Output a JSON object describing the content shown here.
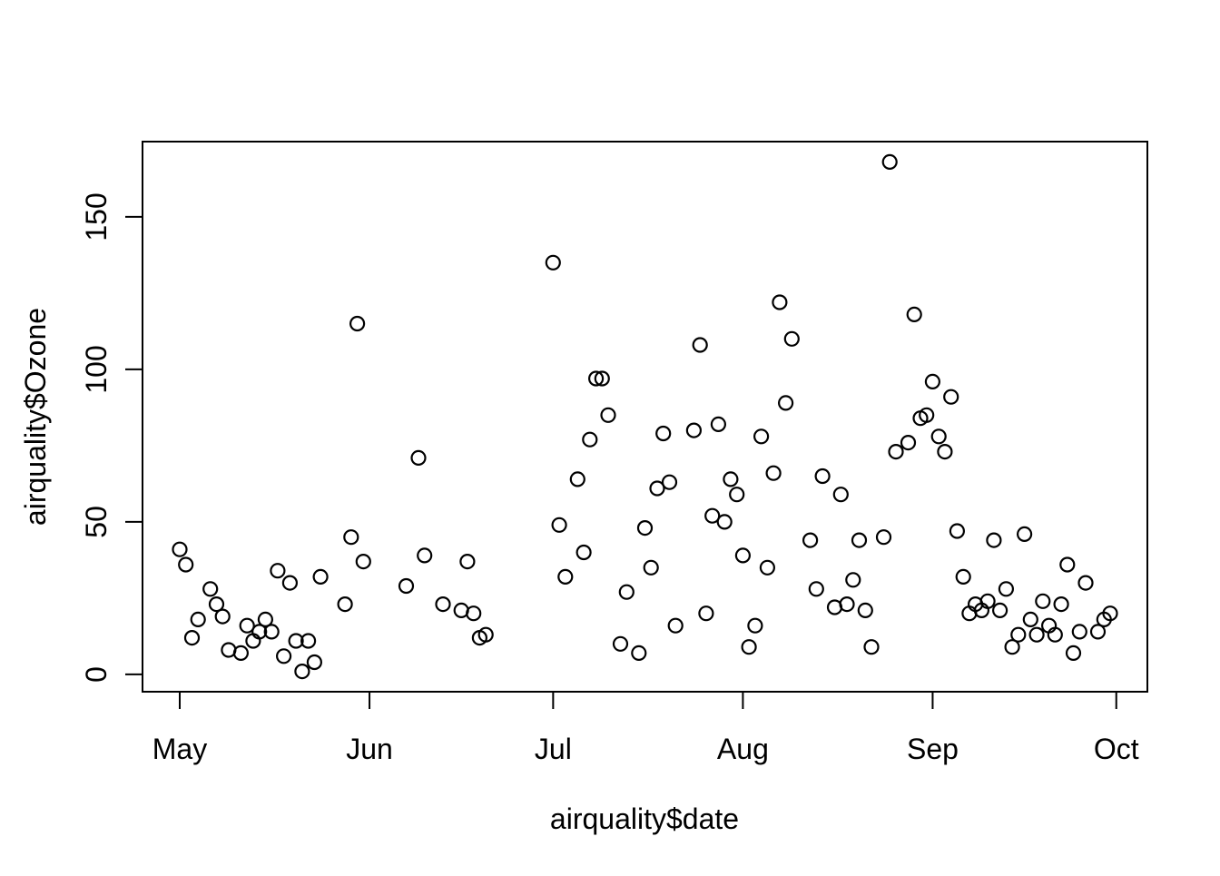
{
  "figure": {
    "background": "#ffffff",
    "foreground": "#000000"
  },
  "chart_data": {
    "type": "scatter",
    "title": "",
    "xlabel": "airquality$date",
    "ylabel": "airquality$Ozone",
    "x_unit": "day-of-year-1973",
    "xlim": [
      114.92,
      279.08
    ],
    "ylim": [
      -5.68,
      174.68
    ],
    "grid": false,
    "legend": null,
    "marker": {
      "shape": "open-circle",
      "radius": 7.5,
      "stroke": "#000000",
      "stroke_width": 2.2,
      "fill": "none"
    },
    "x_ticks": [
      {
        "label": "May",
        "value": 121
      },
      {
        "label": "Jun",
        "value": 152
      },
      {
        "label": "Jul",
        "value": 182
      },
      {
        "label": "Aug",
        "value": 213
      },
      {
        "label": "Sep",
        "value": 244
      },
      {
        "label": "Oct",
        "value": 274
      }
    ],
    "y_ticks": [
      {
        "label": "0",
        "value": 0
      },
      {
        "label": "50",
        "value": 50
      },
      {
        "label": "100",
        "value": 100
      },
      {
        "label": "150",
        "value": 150
      }
    ],
    "points": [
      [
        121,
        41
      ],
      [
        122,
        36
      ],
      [
        123,
        12
      ],
      [
        124,
        18
      ],
      [
        126,
        28
      ],
      [
        127,
        23
      ],
      [
        128,
        19
      ],
      [
        129,
        8
      ],
      [
        131,
        7
      ],
      [
        132,
        16
      ],
      [
        133,
        11
      ],
      [
        134,
        14
      ],
      [
        135,
        18
      ],
      [
        136,
        14
      ],
      [
        137,
        34
      ],
      [
        138,
        6
      ],
      [
        139,
        30
      ],
      [
        140,
        11
      ],
      [
        141,
        1
      ],
      [
        142,
        11
      ],
      [
        143,
        4
      ],
      [
        144,
        32
      ],
      [
        148,
        23
      ],
      [
        149,
        45
      ],
      [
        150,
        115
      ],
      [
        151,
        37
      ],
      [
        158,
        29
      ],
      [
        160,
        71
      ],
      [
        161,
        39
      ],
      [
        164,
        23
      ],
      [
        167,
        21
      ],
      [
        168,
        37
      ],
      [
        169,
        20
      ],
      [
        170,
        12
      ],
      [
        171,
        13
      ],
      [
        182,
        135
      ],
      [
        183,
        49
      ],
      [
        184,
        32
      ],
      [
        186,
        64
      ],
      [
        187,
        40
      ],
      [
        188,
        77
      ],
      [
        189,
        97
      ],
      [
        190,
        97
      ],
      [
        191,
        85
      ],
      [
        193,
        10
      ],
      [
        194,
        27
      ],
      [
        196,
        7
      ],
      [
        197,
        48
      ],
      [
        198,
        35
      ],
      [
        199,
        61
      ],
      [
        200,
        79
      ],
      [
        201,
        63
      ],
      [
        202,
        16
      ],
      [
        205,
        80
      ],
      [
        206,
        108
      ],
      [
        207,
        20
      ],
      [
        208,
        52
      ],
      [
        209,
        82
      ],
      [
        210,
        50
      ],
      [
        211,
        64
      ],
      [
        212,
        59
      ],
      [
        213,
        39
      ],
      [
        214,
        9
      ],
      [
        215,
        16
      ],
      [
        216,
        78
      ],
      [
        217,
        35
      ],
      [
        218,
        66
      ],
      [
        219,
        122
      ],
      [
        220,
        89
      ],
      [
        221,
        110
      ],
      [
        224,
        44
      ],
      [
        225,
        28
      ],
      [
        226,
        65
      ],
      [
        228,
        22
      ],
      [
        229,
        59
      ],
      [
        230,
        23
      ],
      [
        231,
        31
      ],
      [
        232,
        44
      ],
      [
        233,
        21
      ],
      [
        234,
        9
      ],
      [
        236,
        45
      ],
      [
        237,
        168
      ],
      [
        238,
        73
      ],
      [
        240,
        76
      ],
      [
        241,
        118
      ],
      [
        242,
        84
      ],
      [
        243,
        85
      ],
      [
        244,
        96
      ],
      [
        245,
        78
      ],
      [
        246,
        73
      ],
      [
        247,
        91
      ],
      [
        248,
        47
      ],
      [
        249,
        32
      ],
      [
        250,
        20
      ],
      [
        251,
        23
      ],
      [
        252,
        21
      ],
      [
        253,
        24
      ],
      [
        254,
        44
      ],
      [
        255,
        21
      ],
      [
        256,
        28
      ],
      [
        257,
        9
      ],
      [
        258,
        13
      ],
      [
        259,
        46
      ],
      [
        260,
        18
      ],
      [
        261,
        13
      ],
      [
        262,
        24
      ],
      [
        263,
        16
      ],
      [
        264,
        13
      ],
      [
        265,
        23
      ],
      [
        266,
        36
      ],
      [
        267,
        7
      ],
      [
        268,
        14
      ],
      [
        269,
        30
      ],
      [
        271,
        14
      ],
      [
        272,
        18
      ],
      [
        273,
        20
      ]
    ]
  }
}
